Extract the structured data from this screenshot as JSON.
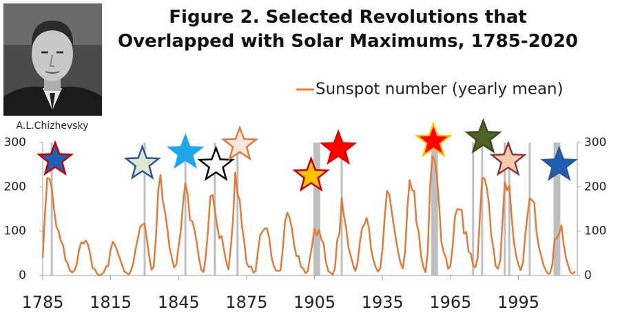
{
  "chart_data": {
    "type": "line",
    "title": "Figure 2. Selected Revolutions that Overlapped with Solar Maximums, 1785-2020",
    "portrait_caption": "A.L.Chizhevsky",
    "x": [
      1785,
      1786,
      1787,
      1788,
      1789,
      1790,
      1791,
      1792,
      1793,
      1794,
      1795,
      1796,
      1797,
      1798,
      1799,
      1800,
      1801,
      1802,
      1803,
      1804,
      1805,
      1806,
      1807,
      1808,
      1809,
      1810,
      1811,
      1812,
      1813,
      1814,
      1815,
      1816,
      1817,
      1818,
      1819,
      1820,
      1821,
      1822,
      1823,
      1824,
      1825,
      1826,
      1827,
      1828,
      1829,
      1830,
      1831,
      1832,
      1833,
      1834,
      1835,
      1836,
      1837,
      1838,
      1839,
      1840,
      1841,
      1842,
      1843,
      1844,
      1845,
      1846,
      1847,
      1848,
      1849,
      1850,
      1851,
      1852,
      1853,
      1854,
      1855,
      1856,
      1857,
      1858,
      1859,
      1860,
      1861,
      1862,
      1863,
      1864,
      1865,
      1866,
      1867,
      1868,
      1869,
      1870,
      1871,
      1872,
      1873,
      1874,
      1875,
      1876,
      1877,
      1878,
      1879,
      1880,
      1881,
      1882,
      1883,
      1884,
      1885,
      1886,
      1887,
      1888,
      1889,
      1890,
      1891,
      1892,
      1893,
      1894,
      1895,
      1896,
      1897,
      1898,
      1899,
      1900,
      1901,
      1902,
      1903,
      1904,
      1905,
      1906,
      1907,
      1908,
      1909,
      1910,
      1911,
      1912,
      1913,
      1914,
      1915,
      1916,
      1917,
      1918,
      1919,
      1920,
      1921,
      1922,
      1923,
      1924,
      1925,
      1926,
      1927,
      1928,
      1929,
      1930,
      1931,
      1932,
      1933,
      1934,
      1935,
      1936,
      1937,
      1938,
      1939,
      1940,
      1941,
      1942,
      1943,
      1944,
      1945,
      1946,
      1947,
      1948,
      1949,
      1950,
      1951,
      1952,
      1953,
      1954,
      1955,
      1956,
      1957,
      1958,
      1959,
      1960,
      1961,
      1962,
      1963,
      1964,
      1965,
      1966,
      1967,
      1968,
      1969,
      1970,
      1971,
      1972,
      1973,
      1974,
      1975,
      1976,
      1977,
      1978,
      1979,
      1980,
      1981,
      1982,
      1983,
      1984,
      1985,
      1986,
      1987,
      1988,
      1989,
      1990,
      1991,
      1992,
      1993,
      1994,
      1995,
      1996,
      1997,
      1998,
      1999,
      2000,
      2001,
      2002,
      2003,
      2004,
      2005,
      2006,
      2007,
      2008,
      2009,
      2010,
      2011,
      2012,
      2013,
      2014,
      2015,
      2016,
      2017,
      2018,
      2019,
      2020
    ],
    "series": [
      {
        "name": "Sunspot number (yearly mean)",
        "color": "#e07b39",
        "values": [
          40,
          138,
          220,
          218,
          197,
          150,
          111,
          100,
          78,
          68,
          36,
          27,
          11,
          7,
          11,
          24,
          57,
          75,
          72,
          79,
          70,
          47,
          17,
          14,
          4,
          0,
          2,
          8,
          20,
          23,
          59,
          76,
          68,
          53,
          39,
          24,
          9,
          6,
          2,
          11,
          28,
          60,
          83,
          109,
          115,
          117,
          81,
          44,
          13,
          20,
          86,
          193,
          227,
          169,
          143,
          106,
          63,
          40,
          18,
          25,
          66,
          103,
          166,
          208,
          183,
          126,
          122,
          103,
          74,
          39,
          13,
          8,
          43,
          104,
          178,
          182,
          147,
          112,
          84,
          89,
          58,
          31,
          14,
          63,
          124,
          232,
          185,
          169,
          110,
          75,
          28,
          19,
          21,
          6,
          10,
          54,
          91,
          99,
          106,
          106,
          86,
          42,
          22,
          11,
          10,
          12,
          60,
          122,
          142,
          130,
          107,
          69,
          44,
          44,
          20,
          16,
          5,
          9,
          41,
          70,
          106,
          90,
          103,
          81,
          73,
          31,
          10,
          6,
          2,
          16,
          79,
          95,
          174,
          135,
          106,
          63,
          44,
          24,
          10,
          28,
          74,
          107,
          115,
          130,
          108,
          59,
          35,
          19,
          9,
          15,
          60,
          133,
          191,
          183,
          148,
          113,
          79,
          51,
          27,
          16,
          55,
          154,
          215,
          193,
          191,
          119,
          98,
          45,
          20,
          7,
          54,
          201,
          269,
          262,
          225,
          159,
          76,
          53,
          40,
          15,
          22,
          67,
          133,
          150,
          149,
          148,
          94,
          98,
          54,
          49,
          23,
          18,
          39,
          131,
          220,
          219,
          199,
          162,
          91,
          61,
          21,
          15,
          34,
          123,
          211,
          192,
          203,
          133,
          76,
          45,
          25,
          12,
          29,
          88,
          136,
          174,
          170,
          164,
          99,
          65,
          46,
          25,
          13,
          4,
          5,
          25,
          81,
          85,
          94,
          113,
          70,
          40,
          22,
          7,
          4,
          9
        ]
      }
    ],
    "xlim": [
      1785,
      2021
    ],
    "xticks": [
      1785,
      1815,
      1845,
      1875,
      1905,
      1935,
      1965,
      1995
    ],
    "ylim": [
      0,
      300
    ],
    "yticks": [
      0,
      100,
      200,
      300
    ],
    "y2lim": [
      0,
      300
    ],
    "y2ticks": [
      0,
      100,
      200,
      300
    ],
    "highlight_color": "#bfbfbf",
    "highlights": [
      {
        "start": 1789,
        "end": 1789
      },
      {
        "start": 1830,
        "end": 1830
      },
      {
        "start": 1848,
        "end": 1848
      },
      {
        "start": 1861,
        "end": 1861
      },
      {
        "start": 1871,
        "end": 1871
      },
      {
        "start": 1905,
        "end": 1907
      },
      {
        "start": 1917,
        "end": 1917
      },
      {
        "start": 1957,
        "end": 1959
      },
      {
        "start": 1975,
        "end": 1975
      },
      {
        "start": 1979,
        "end": 1979
      },
      {
        "start": 1989,
        "end": 1989
      },
      {
        "start": 1991,
        "end": 1991
      },
      {
        "start": 2000,
        "end": 2000
      },
      {
        "start": 2011,
        "end": 2013
      }
    ],
    "stars": [
      {
        "x": 1790.5,
        "y": 261,
        "fill": "#1f5fb5",
        "stroke": "#c00000"
      },
      {
        "x": 1829,
        "y": 252,
        "fill": "#dfe8d0",
        "stroke": "#2f5597"
      },
      {
        "x": 1848,
        "y": 277,
        "fill": "#1fa6e8",
        "stroke": "#1fa6e8"
      },
      {
        "x": 1861.5,
        "y": 249,
        "fill": "#ffffff",
        "stroke": "#000000"
      },
      {
        "x": 1872,
        "y": 295,
        "fill": "#f3e6df",
        "stroke": "#e07b39"
      },
      {
        "x": 1903.5,
        "y": 225,
        "fill": "#ffc000",
        "stroke": "#c00000"
      },
      {
        "x": 1915.5,
        "y": 286,
        "fill": "#ff0000",
        "stroke": "#e00000"
      },
      {
        "x": 1957.5,
        "y": 303,
        "fill": "#ff0000",
        "stroke": "#ffc000"
      },
      {
        "x": 1979.5,
        "y": 311,
        "fill": "#4f6228",
        "stroke": "#3b4a1e"
      },
      {
        "x": 1990.5,
        "y": 260,
        "fill": "#f8cbad",
        "stroke": "#843c3c"
      },
      {
        "x": 2013,
        "y": 249,
        "fill": "#1f5fb5",
        "stroke": "#2f5597"
      }
    ]
  }
}
